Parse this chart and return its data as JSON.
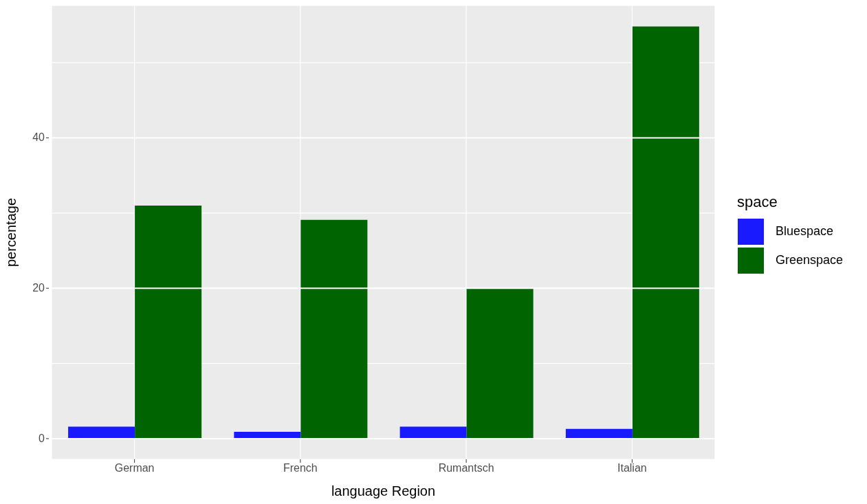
{
  "chart_data": {
    "type": "bar",
    "xlabel": "language Region",
    "ylabel": "percentage",
    "legend_title": "space",
    "categories": [
      "German",
      "French",
      "Rumantsch",
      "Italian"
    ],
    "series": [
      {
        "name": "Bluespace",
        "color": "#1a1aff",
        "values": [
          1.6,
          0.9,
          1.6,
          1.3
        ]
      },
      {
        "name": "Greenspace",
        "color": "#006400",
        "values": [
          31.0,
          29.1,
          20.0,
          54.8
        ]
      }
    ],
    "ylim": [
      -2.75,
      57.6
    ],
    "yticks": [
      0,
      {
        "value": 10,
        "label": null
      },
      20,
      {
        "value": 30,
        "label": null
      },
      40,
      {
        "value": 50,
        "label": null
      }
    ],
    "grid": true,
    "legend": "right"
  }
}
